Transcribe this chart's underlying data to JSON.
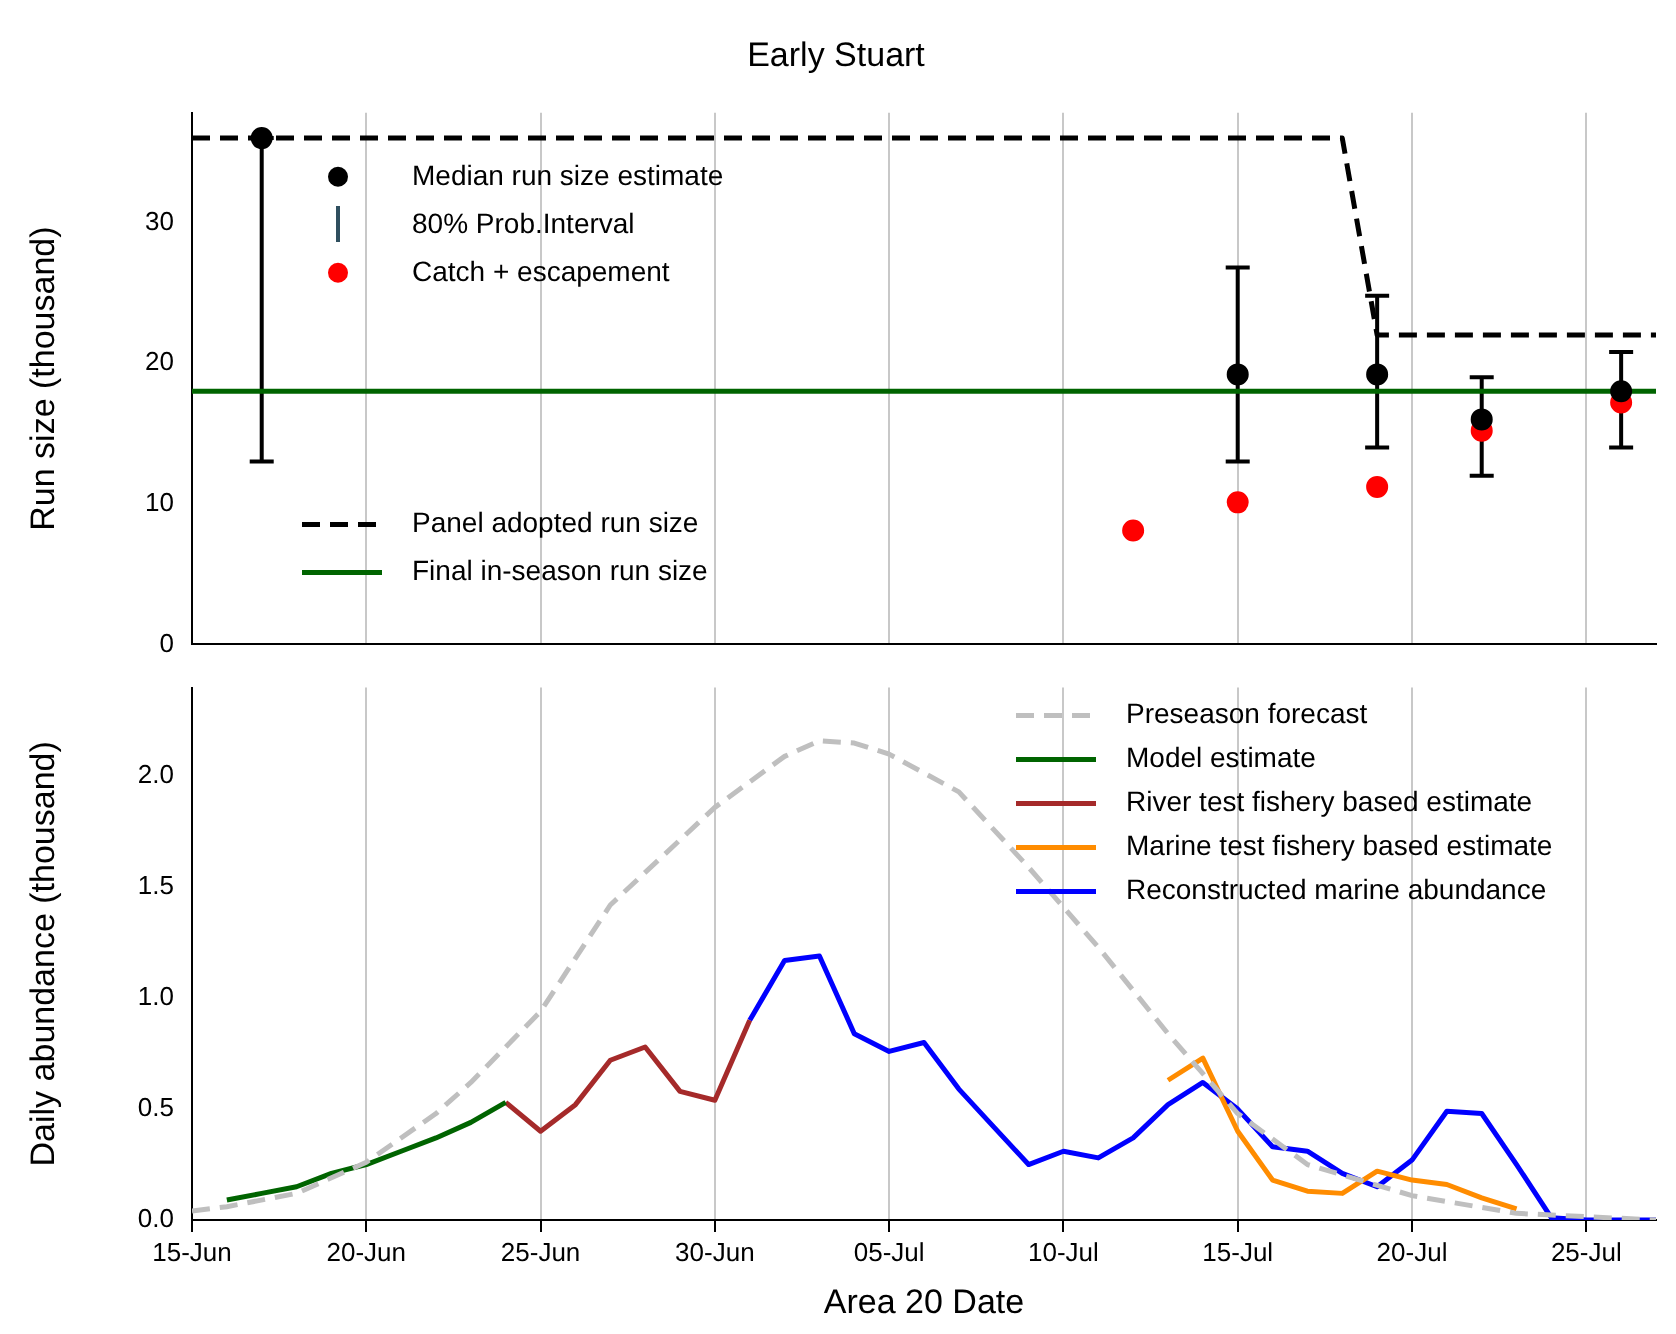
{
  "chart_data": [
    {
      "type": "line",
      "title": "Early Stuart",
      "ylabel": "Run size (thousand)",
      "xlim": [
        "--06-15",
        "--07-27"
      ],
      "xticks": [
        {
          "value": "--06-15",
          "label": null
        },
        {
          "value": "--06-20",
          "label": null
        },
        {
          "value": "--06-25",
          "label": null
        },
        {
          "value": "--06-30",
          "label": null
        },
        {
          "value": "--07-05",
          "label": null
        },
        {
          "value": "--07-10",
          "label": null
        },
        {
          "value": "--07-15",
          "label": null
        },
        {
          "value": "--07-20",
          "label": null
        },
        {
          "value": "--07-25",
          "label": null
        }
      ],
      "ylim": [
        0,
        37.8
      ],
      "yticks": [
        0,
        10,
        20,
        30
      ],
      "grid": "x",
      "legend": "left",
      "tick_labels": "y",
      "annotations": [
        "80% Prob.Interval"
      ],
      "series": [
        {
          "name": "Median run size estimate",
          "type": "scatter",
          "marker": "circle",
          "color": "#000000",
          "x": [
            "--06-17",
            "--07-15",
            "--07-19",
            "--07-22",
            "--07-26"
          ],
          "values": [
            36,
            19.2,
            19.2,
            16,
            18
          ],
          "errors": [
            [
              13,
              36
            ],
            [
              13,
              26.8
            ],
            [
              14,
              24.8
            ],
            [
              12,
              19
            ],
            [
              14,
              20.8
            ]
          ]
        },
        {
          "name": "Catch + escapement",
          "type": "scatter",
          "marker": "circle",
          "color": "#ff0000",
          "x": [
            "--07-12",
            "--07-15",
            "--07-19",
            "--07-22",
            "--07-26"
          ],
          "values": [
            8.1,
            10.1,
            11.2,
            15.2,
            17.2
          ]
        },
        {
          "name": "Panel adopted run size",
          "type": "line",
          "line_style": "dashed",
          "color": "#000000",
          "x": [
            "--06-15",
            "--07-18",
            "--07-19",
            "--07-27"
          ],
          "values": [
            36,
            36,
            22,
            22
          ]
        },
        {
          "name": "Final in-season run size",
          "type": "line",
          "line_style": "solid",
          "color": "#006400",
          "x": [
            "--06-15",
            "--07-27"
          ],
          "values": [
            18,
            18
          ]
        }
      ]
    },
    {
      "type": "line",
      "xlabel": "Area 20 Date",
      "ylabel": "Daily abundance (thousand)",
      "xlim": [
        "--06-15",
        "--07-27"
      ],
      "xticks": [
        {
          "value": "--06-15",
          "label": "15-Jun"
        },
        {
          "value": "--06-20",
          "label": "20-Jun"
        },
        {
          "value": "--06-25",
          "label": "25-Jun"
        },
        {
          "value": "--06-30",
          "label": "30-Jun"
        },
        {
          "value": "--07-05",
          "label": "05-Jul"
        },
        {
          "value": "--07-10",
          "label": "10-Jul"
        },
        {
          "value": "--07-15",
          "label": "15-Jul"
        },
        {
          "value": "--07-20",
          "label": "20-Jul"
        },
        {
          "value": "--07-25",
          "label": "25-Jul"
        }
      ],
      "ylim": [
        0,
        2.4
      ],
      "yticks": [
        {
          "value": 0,
          "label": "0.0"
        },
        {
          "value": 0.5,
          "label": "0.5"
        },
        {
          "value": 1,
          "label": "1.0"
        },
        {
          "value": 1.5,
          "label": "1.5"
        },
        {
          "value": 2,
          "label": "2.0"
        }
      ],
      "grid": "x",
      "legend": "top right",
      "series": [
        {
          "name": "Preseason forecast",
          "line_style": "dashed",
          "color": "#bfbfbf",
          "x": [
            "--06-15",
            "--06-16",
            "--06-18",
            "--06-20",
            "--06-22",
            "--06-23",
            "--06-25",
            "--06-27",
            "--06-30",
            "--07-02",
            "--07-03",
            "--07-04",
            "--07-05",
            "--07-07",
            "--07-09",
            "--07-11",
            "--07-13",
            "--07-15",
            "--07-17",
            "--07-20",
            "--07-23",
            "--07-27"
          ],
          "values": [
            0.04,
            0.06,
            0.12,
            0.26,
            0.48,
            0.62,
            0.94,
            1.42,
            1.86,
            2.09,
            2.16,
            2.15,
            2.1,
            1.93,
            1.59,
            1.23,
            0.84,
            0.48,
            0.25,
            0.11,
            0.03,
            0
          ]
        },
        {
          "name": "Model estimate",
          "line_style": "solid",
          "color": "#006400",
          "x": [
            "--06-16",
            "--06-17",
            "--06-18",
            "--06-19",
            "--06-20",
            "--06-21",
            "--06-22",
            "--06-23",
            "--06-24"
          ],
          "values": [
            0.09,
            0.12,
            0.15,
            0.21,
            0.25,
            0.31,
            0.37,
            0.44,
            0.53
          ]
        },
        {
          "name": "River test fishery based estimate",
          "line_style": "solid",
          "color": "#a52a2a",
          "x": [
            "--06-24",
            "--06-25",
            "--06-26",
            "--06-27",
            "--06-28",
            "--06-29",
            "--06-30",
            "--07-01"
          ],
          "values": [
            0.53,
            0.4,
            0.52,
            0.72,
            0.78,
            0.58,
            0.54,
            0.9
          ]
        },
        {
          "name": "Marine test fishery based estimate",
          "line_style": "solid",
          "color": "#ff8c00",
          "x": [
            "--07-13",
            "--07-14",
            "--07-15",
            "--07-16",
            "--07-17",
            "--07-18",
            "--07-19",
            "--07-20",
            "--07-21",
            "--07-22",
            "--07-23"
          ],
          "values": [
            0.63,
            0.73,
            0.4,
            0.18,
            0.13,
            0.12,
            0.22,
            0.18,
            0.16,
            0.1,
            0.05
          ]
        },
        {
          "name": "Reconstructed marine abundance",
          "line_style": "solid",
          "color": "#0000ff",
          "x": [
            "--07-01",
            "--07-02",
            "--07-03",
            "--07-04",
            "--07-05",
            "--07-06",
            "--07-07",
            "--07-08",
            "--07-09",
            "--07-10",
            "--07-11",
            "--07-12",
            "--07-13",
            "--07-14",
            "--07-15",
            "--07-16",
            "--07-17",
            "--07-18",
            "--07-19",
            "--07-20",
            "--07-21",
            "--07-22",
            "--07-23",
            "--07-24",
            "--07-25",
            "--07-26",
            "--07-27"
          ],
          "values": [
            0.9,
            1.17,
            1.19,
            0.84,
            0.76,
            0.8,
            0.59,
            0.42,
            0.25,
            0.31,
            0.28,
            0.37,
            0.52,
            0.62,
            0.5,
            0.33,
            0.31,
            0.21,
            0.15,
            0.27,
            0.49,
            0.48,
            0.25,
            0.01,
            0,
            0,
            0
          ]
        }
      ]
    }
  ]
}
